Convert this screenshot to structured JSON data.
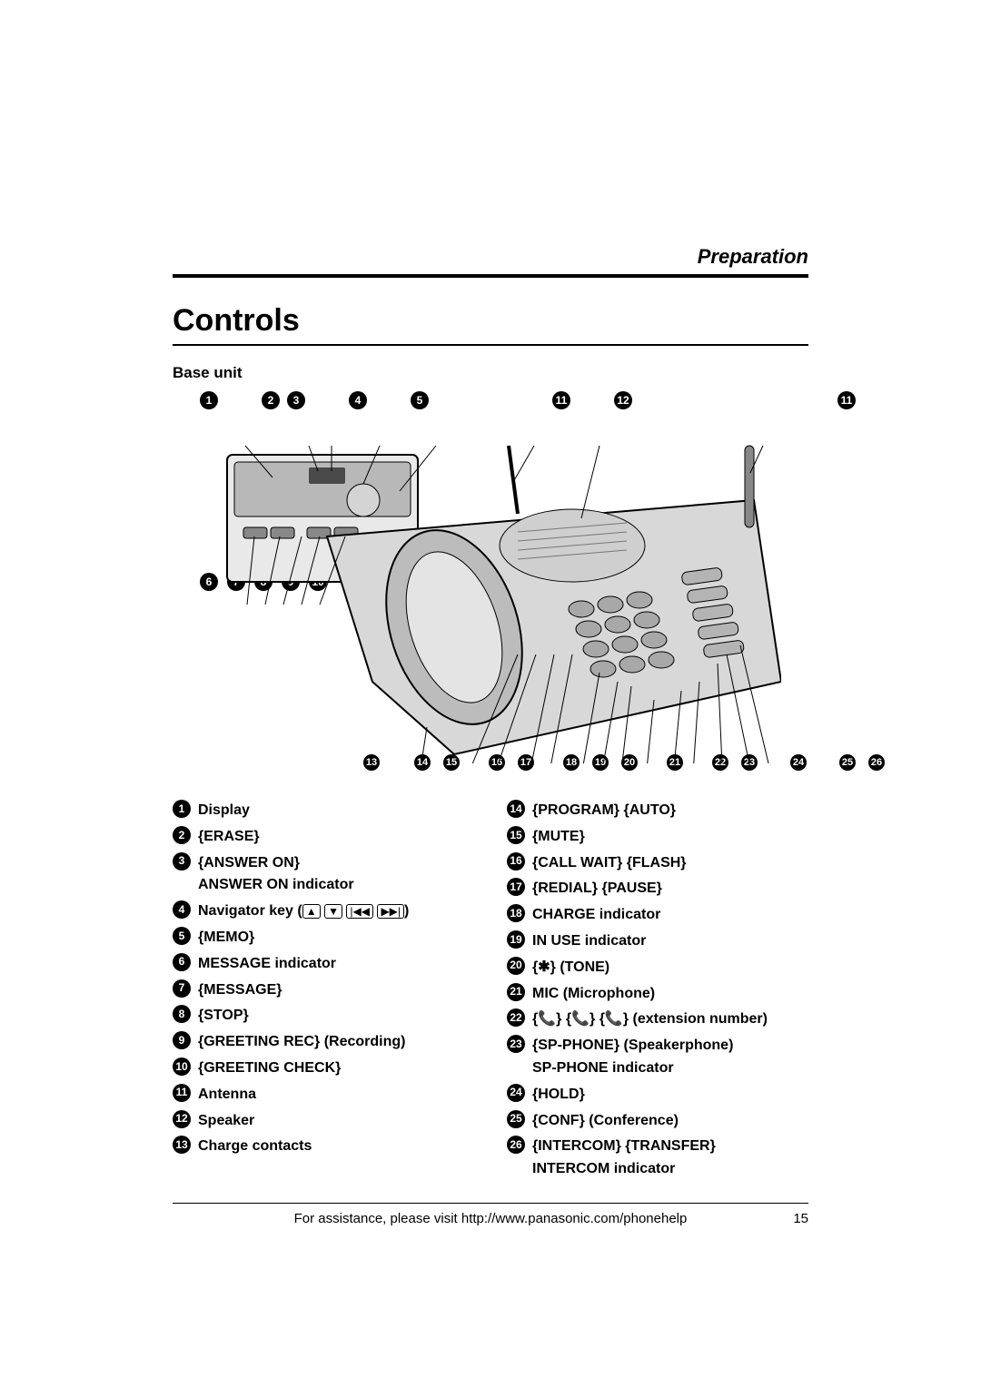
{
  "section_label": "Preparation",
  "title": "Controls",
  "subhead": "Base unit",
  "callouts_top": [
    "1",
    "2",
    "3",
    "4",
    "5",
    "11",
    "12",
    "11"
  ],
  "callouts_mid": [
    "6",
    "7",
    "8",
    "9",
    "10"
  ],
  "callouts_bottom": [
    "13",
    "14",
    "15",
    "16",
    "17",
    "18",
    "19",
    "20",
    "21",
    "22",
    "23",
    "24",
    "25",
    "26"
  ],
  "left_items": [
    {
      "n": "1",
      "text": "Display"
    },
    {
      "n": "2",
      "text": "{ERASE}"
    },
    {
      "n": "3",
      "text": "{ANSWER ON}\nANSWER ON indicator"
    },
    {
      "n": "4",
      "text": "Navigator key ({▲} {▼} {|◀◀} {▶▶|})"
    },
    {
      "n": "5",
      "text": "{MEMO}"
    },
    {
      "n": "6",
      "text": "MESSAGE indicator"
    },
    {
      "n": "7",
      "text": "{MESSAGE}"
    },
    {
      "n": "8",
      "text": "{STOP}"
    },
    {
      "n": "9",
      "text": "{GREETING REC} (Recording)"
    },
    {
      "n": "10",
      "text": "{GREETING CHECK}"
    },
    {
      "n": "11",
      "text": "Antenna"
    },
    {
      "n": "12",
      "text": "Speaker"
    },
    {
      "n": "13",
      "text": "Charge contacts"
    }
  ],
  "right_items": [
    {
      "n": "14",
      "text": "{PROGRAM} {AUTO}"
    },
    {
      "n": "15",
      "text": "{MUTE}"
    },
    {
      "n": "16",
      "text": "{CALL WAIT} {FLASH}"
    },
    {
      "n": "17",
      "text": "{REDIAL} {PAUSE}"
    },
    {
      "n": "18",
      "text": "CHARGE indicator"
    },
    {
      "n": "19",
      "text": "IN USE indicator"
    },
    {
      "n": "20",
      "text": "{*} (TONE)"
    },
    {
      "n": "21",
      "text": "MIC (Microphone)"
    },
    {
      "n": "22",
      "text": "{𝄞} {𝄞} {𝄞} (extension number)"
    },
    {
      "n": "23",
      "text": "{SP-PHONE} (Speakerphone)\nSP-PHONE indicator"
    },
    {
      "n": "24",
      "text": "{HOLD}"
    },
    {
      "n": "25",
      "text": "{CONF} (Conference)"
    },
    {
      "n": "26",
      "text": "{INTERCOM} {TRANSFER}\nINTERCOM indicator"
    }
  ],
  "footer_text": "For assistance, please visit http://www.panasonic.com/phonehelp",
  "page_number": "15",
  "colors": {
    "text": "#000000",
    "bg": "#ffffff"
  }
}
